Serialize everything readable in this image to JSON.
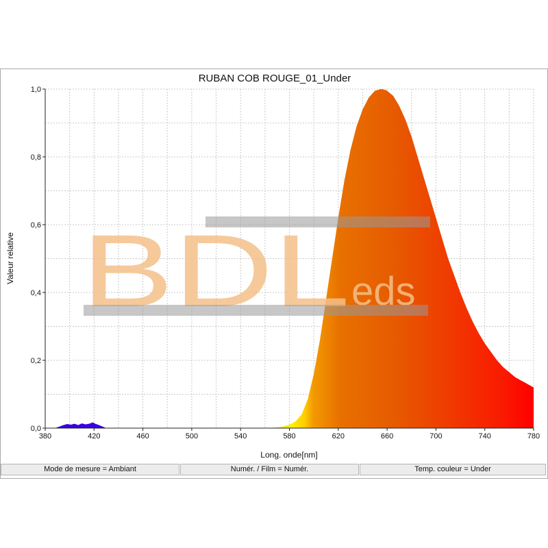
{
  "chart_data": {
    "type": "area",
    "title": "RUBAN COB ROUGE_01_Under",
    "xlabel": "Long. onde[nm]",
    "ylabel": "Valeur relative",
    "xlim": [
      380,
      780
    ],
    "ylim": [
      0,
      1
    ],
    "x_ticks": [
      380,
      420,
      460,
      500,
      540,
      580,
      620,
      660,
      700,
      740,
      780
    ],
    "y_ticks": [
      "0,0",
      "0,2",
      "0,4",
      "0,6",
      "0,8",
      "1,0"
    ],
    "y_tick_values": [
      0,
      0.2,
      0.4,
      0.6,
      0.8,
      1.0
    ],
    "grid": "on",
    "fill": "wavelength-colored spectrum",
    "series": [
      {
        "x": [
          380,
          388,
          392,
          395,
          398,
          401,
          404,
          407,
          410,
          413,
          416,
          419,
          421,
          424,
          428,
          430,
          440,
          500,
          560,
          570,
          575,
          580,
          585,
          590,
          595,
          600,
          605,
          610,
          615,
          620,
          625,
          630,
          635,
          640,
          645,
          650,
          655,
          658,
          660,
          665,
          670,
          675,
          680,
          685,
          690,
          695,
          700,
          705,
          710,
          715,
          720,
          725,
          730,
          735,
          740,
          745,
          750,
          755,
          760,
          765,
          770,
          775,
          780
        ],
        "y": [
          0,
          0,
          0.005,
          0.009,
          0.012,
          0.01,
          0.013,
          0.009,
          0.014,
          0.011,
          0.013,
          0.017,
          0.013,
          0.009,
          0.003,
          0,
          0,
          0,
          0,
          0.002,
          0.005,
          0.01,
          0.02,
          0.04,
          0.085,
          0.16,
          0.26,
          0.38,
          0.5,
          0.62,
          0.73,
          0.82,
          0.89,
          0.94,
          0.975,
          0.995,
          1.0,
          0.998,
          0.995,
          0.98,
          0.95,
          0.91,
          0.86,
          0.8,
          0.74,
          0.68,
          0.62,
          0.56,
          0.5,
          0.45,
          0.4,
          0.355,
          0.315,
          0.28,
          0.25,
          0.225,
          0.2,
          0.18,
          0.165,
          0.15,
          0.14,
          0.13,
          0.12
        ]
      }
    ]
  },
  "status": {
    "measure_mode": "Mode de mesure = Ambiant",
    "numeric_film": "Numér. / Film = Numér.",
    "color_temp": "Temp. couleur = Under"
  },
  "watermark": {
    "text_large": "BDL",
    "text_small": "eds",
    "color": "#f5c08a"
  }
}
